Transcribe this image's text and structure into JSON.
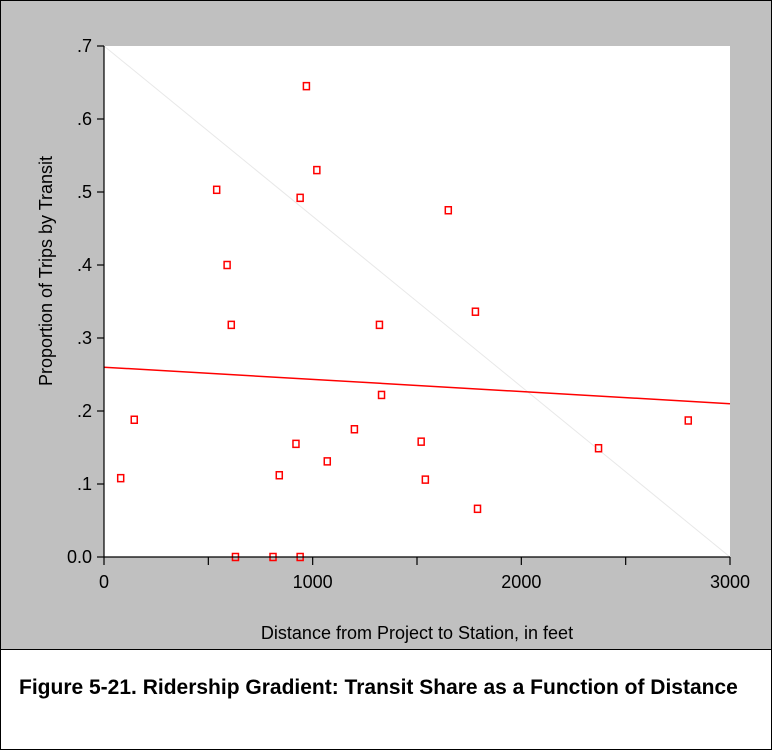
{
  "caption": "Figure 5-21. Ridership Gradient: Transit Share as a Function of Distance",
  "chart_data": {
    "type": "scatter",
    "xlabel": "Distance from Project to Station, in feet",
    "ylabel": "Proportion of Trips by Transit",
    "xlim": [
      0,
      3000
    ],
    "ylim": [
      0,
      0.7
    ],
    "x_ticks": [
      {
        "value": 0,
        "label": "0"
      },
      {
        "value": 1000,
        "label": "1000"
      },
      {
        "value": 2000,
        "label": "2000"
      },
      {
        "value": 3000,
        "label": "3000"
      }
    ],
    "x_minor_ticks": [
      500,
      1500,
      2500
    ],
    "y_ticks": [
      {
        "value": 0,
        "label": "0.0"
      },
      {
        "value": 0.1,
        "label": ".1"
      },
      {
        "value": 0.2,
        "label": ".2"
      },
      {
        "value": 0.3,
        "label": ".3"
      },
      {
        "value": 0.4,
        "label": ".4"
      },
      {
        "value": 0.5,
        "label": ".5"
      },
      {
        "value": 0.6,
        "label": ".6"
      },
      {
        "value": 0.7,
        "label": ".7"
      }
    ],
    "grid": false,
    "marker_color": "#ff0000",
    "fit_line": {
      "x": [
        0,
        3000
      ],
      "y": [
        0.26,
        0.21
      ],
      "color": "#ff0000"
    },
    "diagonal_line": {
      "x": [
        0,
        3000
      ],
      "y": [
        0.7,
        0.0
      ],
      "color": "#e8e8e8"
    },
    "points": [
      {
        "x": 80,
        "y": 0.108
      },
      {
        "x": 145,
        "y": 0.188
      },
      {
        "x": 540,
        "y": 0.503
      },
      {
        "x": 590,
        "y": 0.4
      },
      {
        "x": 610,
        "y": 0.318
      },
      {
        "x": 630,
        "y": 0.0
      },
      {
        "x": 810,
        "y": 0.0
      },
      {
        "x": 840,
        "y": 0.112
      },
      {
        "x": 920,
        "y": 0.155
      },
      {
        "x": 940,
        "y": 0.492
      },
      {
        "x": 940,
        "y": 0.0
      },
      {
        "x": 970,
        "y": 0.645
      },
      {
        "x": 1020,
        "y": 0.53
      },
      {
        "x": 1070,
        "y": 0.131
      },
      {
        "x": 1200,
        "y": 0.175
      },
      {
        "x": 1320,
        "y": 0.318
      },
      {
        "x": 1330,
        "y": 0.222
      },
      {
        "x": 1520,
        "y": 0.158
      },
      {
        "x": 1540,
        "y": 0.106
      },
      {
        "x": 1650,
        "y": 0.475
      },
      {
        "x": 1780,
        "y": 0.336
      },
      {
        "x": 1790,
        "y": 0.066
      },
      {
        "x": 2370,
        "y": 0.149
      },
      {
        "x": 2800,
        "y": 0.187
      }
    ]
  }
}
